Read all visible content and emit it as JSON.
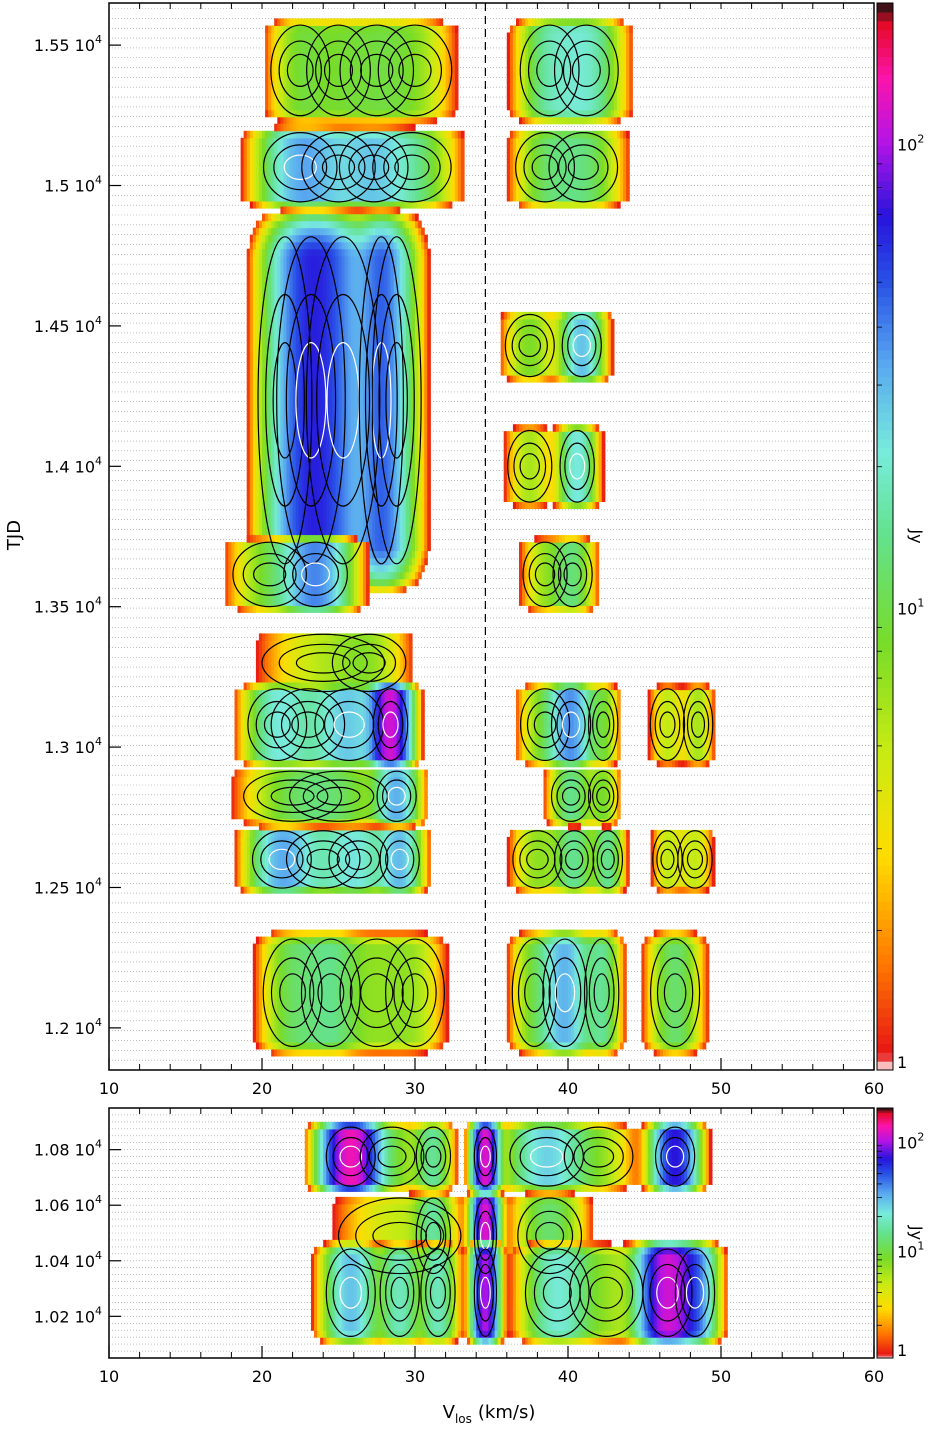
{
  "chart_data": [
    {
      "type": "heatmap",
      "panel": "top",
      "xlabel_main": "V",
      "xlabel_sub": "los",
      "xlabel_unit": "(km/s)",
      "ylabel": "TJD",
      "xlim": [
        10,
        60
      ],
      "ylim": [
        11850,
        15650
      ],
      "x_ticks": [
        10,
        20,
        30,
        40,
        50,
        60
      ],
      "y_ticks": [
        {
          "mantissa": "1.2",
          "exp": "4",
          "value": 12000
        },
        {
          "mantissa": "1.25",
          "exp": "4",
          "value": 12500
        },
        {
          "mantissa": "1.3",
          "exp": "4",
          "value": 13000
        },
        {
          "mantissa": "1.35",
          "exp": "4",
          "value": 13500
        },
        {
          "mantissa": "1.4",
          "exp": "4",
          "value": 14000
        },
        {
          "mantissa": "1.45",
          "exp": "4",
          "value": 14500
        },
        {
          "mantissa": "1.5",
          "exp": "4",
          "value": 15000
        },
        {
          "mantissa": "1.55",
          "exp": "4",
          "value": 15500
        }
      ],
      "reference_velocity": 34.6,
      "colorbar": {
        "label": "Jy",
        "scale": "log",
        "range": [
          1,
          200
        ],
        "ticks": [
          {
            "base": "1",
            "exp": "",
            "value": 1
          },
          {
            "base": "10",
            "exp": "1",
            "value": 10
          },
          {
            "base": "10",
            "exp": "2",
            "value": 100
          }
        ]
      },
      "bands": [
        {
          "t0": 15220,
          "t1": 15600,
          "peaks": [
            {
              "v": 22.5,
              "w": 1.2,
              "a": 8
            },
            {
              "v": 25,
              "w": 1.3,
              "a": 6
            },
            {
              "v": 27.5,
              "w": 1.5,
              "a": 7
            },
            {
              "v": 30,
              "w": 1.5,
              "a": 6
            },
            {
              "v": 38.8,
              "w": 1.2,
              "a": 14
            },
            {
              "v": 41.2,
              "w": 1.3,
              "a": 18
            }
          ]
        },
        {
          "t0": 14920,
          "t1": 15210,
          "peaks": [
            {
              "v": 22.5,
              "w": 1.5,
              "a": 30
            },
            {
              "v": 25,
              "w": 1.5,
              "a": 12
            },
            {
              "v": 27.3,
              "w": 1.4,
              "a": 20
            },
            {
              "v": 29.8,
              "w": 1.6,
              "a": 12
            },
            {
              "v": 38.5,
              "w": 1.2,
              "a": 9
            },
            {
              "v": 41,
              "w": 1.4,
              "a": 12
            }
          ]
        },
        {
          "t0": 13550,
          "t1": 14920,
          "peaks": [
            {
              "v": 21.5,
              "w": 1.1,
              "a": 6
            },
            {
              "v": 23.2,
              "w": 1.4,
              "a": 55
            },
            {
              "v": 25.3,
              "w": 1.5,
              "a": 22
            },
            {
              "v": 27.8,
              "w": 0.9,
              "a": 35
            },
            {
              "v": 28.8,
              "w": 1.0,
              "a": 10
            }
          ]
        },
        {
          "t0": 14300,
          "t1": 14560,
          "peaks": [
            {
              "v": 37.5,
              "w": 1.0,
              "a": 8
            },
            {
              "v": 40.9,
              "w": 0.8,
              "a": 28
            }
          ]
        },
        {
          "t0": 13850,
          "t1": 14150,
          "peaks": [
            {
              "v": 37.5,
              "w": 0.9,
              "a": 6
            },
            {
              "v": 40.6,
              "w": 0.7,
              "a": 22
            }
          ]
        },
        {
          "t0": 13480,
          "t1": 13750,
          "peaks": [
            {
              "v": 20.5,
              "w": 1.5,
              "a": 8
            },
            {
              "v": 23.5,
              "w": 1.3,
              "a": 38
            },
            {
              "v": 38.5,
              "w": 0.9,
              "a": 6
            },
            {
              "v": 40.3,
              "w": 0.8,
              "a": 12
            }
          ]
        },
        {
          "t0": 13180,
          "t1": 13420,
          "peaks": [
            {
              "v": 24,
              "w": 2.5,
              "a": 5
            },
            {
              "v": 27,
              "w": 1.5,
              "a": 5
            }
          ]
        },
        {
          "t0": 12930,
          "t1": 13230,
          "peaks": [
            {
              "v": 21,
              "w": 1.2,
              "a": 18
            },
            {
              "v": 23,
              "w": 1.5,
              "a": 8
            },
            {
              "v": 25.7,
              "w": 1.4,
              "a": 25
            },
            {
              "v": 28.4,
              "w": 0.7,
              "a": 110
            },
            {
              "v": 38.5,
              "w": 1.0,
              "a": 8
            },
            {
              "v": 40.2,
              "w": 0.8,
              "a": 35
            },
            {
              "v": 42.3,
              "w": 0.6,
              "a": 8
            },
            {
              "v": 46.5,
              "w": 0.7,
              "a": 5
            },
            {
              "v": 48.5,
              "w": 0.6,
              "a": 6
            }
          ]
        },
        {
          "t0": 12720,
          "t1": 12930,
          "peaks": [
            {
              "v": 22,
              "w": 2,
              "a": 8
            },
            {
              "v": 25,
              "w": 2,
              "a": 9
            },
            {
              "v": 28.8,
              "w": 0.8,
              "a": 30
            },
            {
              "v": 40.2,
              "w": 0.8,
              "a": 14
            },
            {
              "v": 42.3,
              "w": 0.6,
              "a": 8
            }
          ]
        },
        {
          "t0": 12480,
          "t1": 12720,
          "peaks": [
            {
              "v": 21.3,
              "w": 1.2,
              "a": 30
            },
            {
              "v": 24,
              "w": 1.5,
              "a": 12
            },
            {
              "v": 26.3,
              "w": 1.2,
              "a": 18
            },
            {
              "v": 29,
              "w": 0.8,
              "a": 28
            },
            {
              "v": 38,
              "w": 1.0,
              "a": 7
            },
            {
              "v": 40.4,
              "w": 0.8,
              "a": 14
            },
            {
              "v": 42.6,
              "w": 0.6,
              "a": 14
            },
            {
              "v": 46.5,
              "w": 0.6,
              "a": 5
            },
            {
              "v": 48.3,
              "w": 0.7,
              "a": 5
            }
          ]
        },
        {
          "t0": 11900,
          "t1": 12350,
          "peaks": [
            {
              "v": 22,
              "w": 1.2,
              "a": 10
            },
            {
              "v": 24.5,
              "w": 1.2,
              "a": 12
            },
            {
              "v": 27.5,
              "w": 1.5,
              "a": 6
            },
            {
              "v": 30,
              "w": 1.2,
              "a": 5
            },
            {
              "v": 37.8,
              "w": 0.9,
              "a": 8
            },
            {
              "v": 39.8,
              "w": 0.9,
              "a": 30
            },
            {
              "v": 42.2,
              "w": 0.7,
              "a": 14
            },
            {
              "v": 47,
              "w": 1.0,
              "a": 12
            }
          ]
        }
      ]
    },
    {
      "type": "heatmap",
      "panel": "bottom",
      "xlabel_main": "V",
      "xlabel_sub": "los",
      "xlabel_unit": "(km/s)",
      "xlim": [
        10,
        60
      ],
      "ylim": [
        10050,
        10950
      ],
      "x_ticks": [
        10,
        20,
        30,
        40,
        50,
        60
      ],
      "y_ticks": [
        {
          "mantissa": "1.02",
          "exp": "4",
          "value": 10200
        },
        {
          "mantissa": "1.04",
          "exp": "4",
          "value": 10400
        },
        {
          "mantissa": "1.06",
          "exp": "4",
          "value": 10600
        },
        {
          "mantissa": "1.08",
          "exp": "4",
          "value": 10800
        }
      ],
      "colorbar": {
        "label": "Jy",
        "scale": "log",
        "range": [
          1,
          200
        ],
        "ticks": [
          {
            "base": "1",
            "exp": "",
            "value": 1
          },
          {
            "base": "10",
            "exp": "1",
            "value": 10
          },
          {
            "base": "10",
            "exp": "2",
            "value": 100
          }
        ]
      },
      "bands": [
        {
          "t0": 10650,
          "t1": 10900,
          "peaks": [
            {
              "v": 25.8,
              "w": 1.0,
              "a": 130
            },
            {
              "v": 28.5,
              "w": 1.3,
              "a": 8
            },
            {
              "v": 31.2,
              "w": 0.7,
              "a": 14
            },
            {
              "v": 34.6,
              "w": 0.45,
              "a": 120
            },
            {
              "v": 38.6,
              "w": 1.5,
              "a": 25
            },
            {
              "v": 42,
              "w": 1.4,
              "a": 6
            },
            {
              "v": 47,
              "w": 0.8,
              "a": 70
            }
          ]
        },
        {
          "t0": 10330,
          "t1": 10650,
          "peaks": [
            {
              "v": 29,
              "w": 2.5,
              "a": 5
            },
            {
              "v": 31.2,
              "w": 0.7,
              "a": 12
            },
            {
              "v": 34.6,
              "w": 0.45,
              "a": 120
            },
            {
              "v": 38.8,
              "w": 1.3,
              "a": 12
            }
          ]
        },
        {
          "t0": 10100,
          "t1": 10470,
          "peaks": [
            {
              "v": 25.8,
              "w": 1.0,
              "a": 28
            },
            {
              "v": 29,
              "w": 0.8,
              "a": 18
            },
            {
              "v": 31.5,
              "w": 0.7,
              "a": 18
            },
            {
              "v": 34.6,
              "w": 0.45,
              "a": 100
            },
            {
              "v": 39.3,
              "w": 1.3,
              "a": 20
            },
            {
              "v": 42.5,
              "w": 1.5,
              "a": 6
            },
            {
              "v": 46.5,
              "w": 1.0,
              "a": 110
            },
            {
              "v": 48.3,
              "w": 0.8,
              "a": 35
            }
          ]
        }
      ]
    }
  ]
}
